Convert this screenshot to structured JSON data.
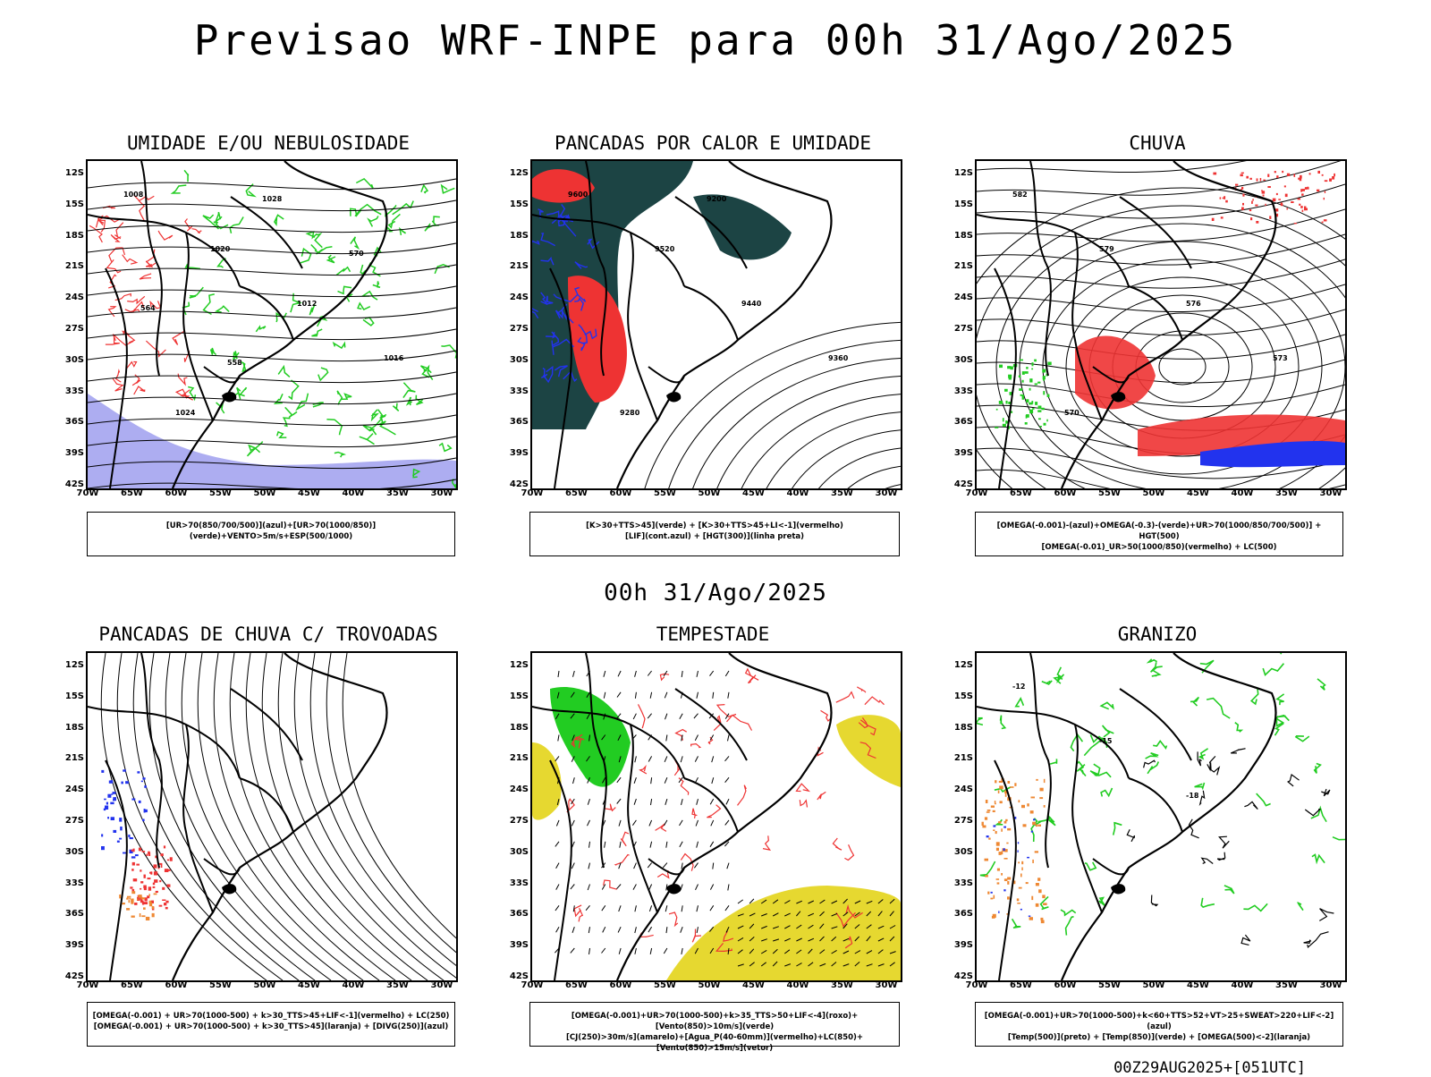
{
  "header": {
    "title": "Previsao WRF-INPE  para 00h 31/Ago/2025",
    "mid_title": "00h 31/Ago/2025",
    "footer": "00Z29AUG2025+[051UTC]"
  },
  "axes": {
    "lat_labels": [
      "12S",
      "15S",
      "18S",
      "21S",
      "24S",
      "27S",
      "30S",
      "33S",
      "36S",
      "39S",
      "42S"
    ],
    "lon_labels": [
      "70W",
      "65W",
      "60W",
      "55W",
      "50W",
      "45W",
      "40W",
      "35W",
      "30W"
    ]
  },
  "panels": [
    {
      "title": "UMIDADE E/OU NEBULOSIDADE",
      "legend_lines": [
        "[UR>70(850/700/500)](azul)+[UR>70(1000/850)](verde)+VENTO>5m/s+ESP(500/1000)"
      ],
      "contour_labels": [
        "1008",
        "1020",
        "1012",
        "1016",
        "1024",
        "1028",
        "570",
        "564",
        "558"
      ]
    },
    {
      "title": "PANCADAS POR CALOR E UMIDADE",
      "legend_lines": [
        "[K>30+TTS>45](verde) + [K>30+TTS>45+LI<-1](vermelho)",
        "[LIF](cont.azul) + [HGT(300)](linha preta)"
      ],
      "contour_labels": [
        "9600",
        "9520",
        "9440",
        "9360",
        "9280",
        "9200"
      ]
    },
    {
      "title": "CHUVA",
      "legend_lines": [
        "[OMEGA(-0.001)-(azul)+OMEGA(-0.3)-(verde)+UR>70(1000/850/700/500)] + HGT(500)",
        "[OMEGA(-0.01)_UR>50(1000/850)(vermelho) + LC(500)"
      ],
      "contour_labels": [
        "582",
        "579",
        "576",
        "573",
        "570"
      ]
    },
    {
      "title": "PANCADAS DE CHUVA C/ TROVOADAS",
      "legend_lines": [
        "[OMEGA(-0.001) + UR>70(1000-500) + k>30_TTS>45+LIF<-1](vermelho) + LC(250)",
        "[OMEGA(-0.001) + UR>70(1000-500) + k>30_TTS>45](laranja) + [DIVG(250)](azul)"
      ],
      "contour_labels": []
    },
    {
      "title": "TEMPESTADE",
      "legend_lines": [
        "[OMEGA(-0.001)+UR>70(1000-500)+k>35_TTS>50+LIF<-4](roxo)+[Vento(850)>10m/s](verde)",
        "[CJ(250)>30m/s](amarelo)+[Agua_P(40-60mm)](vermelho)+LC(850)+[Vento(850)>15m/s](vetor)"
      ],
      "contour_labels": []
    },
    {
      "title": "GRANIZO",
      "legend_lines": [
        "[OMEGA(-0.001)+UR>70(1000-500)+k<60+TTS>52+VT>25+SWEAT>220+LIF<-2](azul)",
        "[Temp(500)](preto) + [Temp(850)](verde) + [OMEGA(500)<-2](laranja)"
      ],
      "contour_labels": [
        "-12",
        "-15",
        "-18"
      ]
    }
  ],
  "colors": {
    "green": "#22cc22",
    "red": "#ee3333",
    "blue": "#2233ee",
    "teal": "#1c4444",
    "yellow": "#e6d830",
    "lavender": "#9999ee",
    "orange": "#ee8833"
  }
}
